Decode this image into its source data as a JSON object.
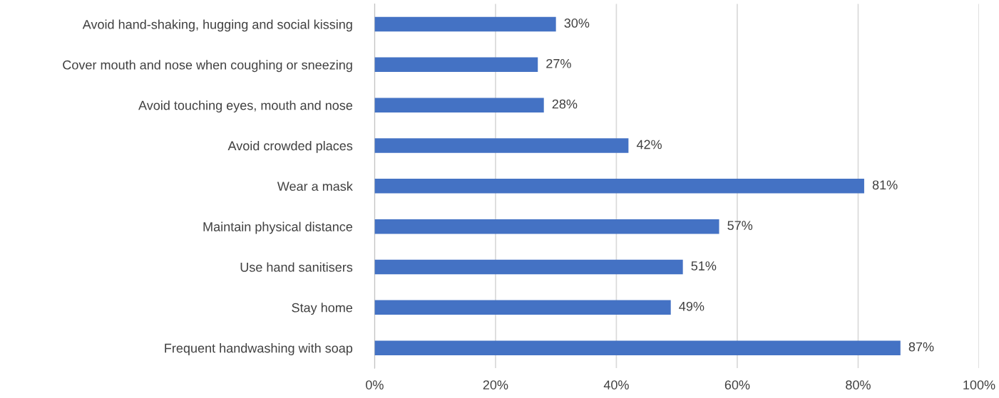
{
  "chart_data": {
    "type": "bar",
    "orientation": "horizontal",
    "categories": [
      "Avoid hand-shaking, hugging and social kissing",
      "Cover mouth and nose when coughing or sneezing",
      "Avoid touching eyes, mouth and nose",
      "Avoid crowded places",
      "Wear a mask",
      "Maintain physical distance",
      "Use hand sanitisers",
      "Stay home",
      "Frequent handwashing with soap"
    ],
    "values": [
      30,
      27,
      28,
      42,
      81,
      57,
      51,
      49,
      87
    ],
    "value_labels": [
      "30%",
      "27%",
      "28%",
      "42%",
      "81%",
      "57%",
      "51%",
      "49%",
      "87%"
    ],
    "color": "#4472c4",
    "xlim": [
      0,
      100
    ],
    "xticks": [
      {
        "value": 0,
        "label": "0%"
      },
      {
        "value": 20,
        "label": "20%"
      },
      {
        "value": 40,
        "label": "40%"
      },
      {
        "value": 60,
        "label": "60%"
      },
      {
        "value": 80,
        "label": "80%"
      },
      {
        "value": 100,
        "label": "100%"
      }
    ],
    "grid": "x"
  }
}
